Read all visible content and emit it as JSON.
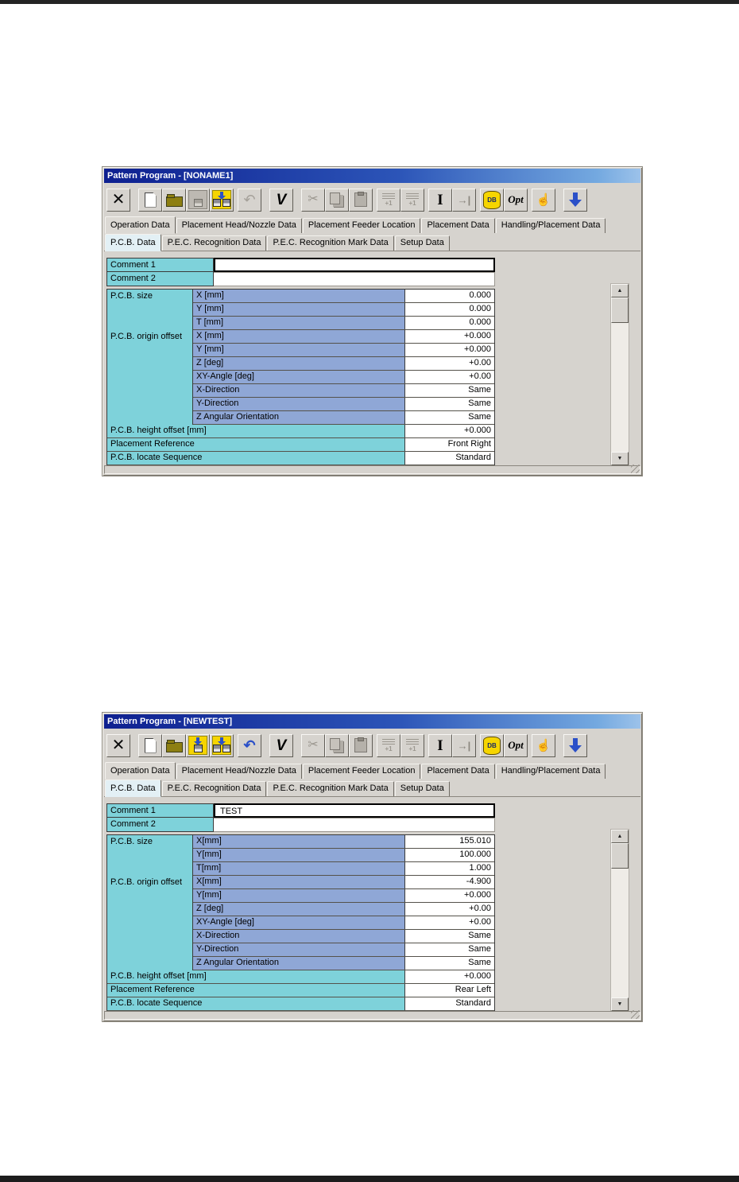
{
  "icons": {
    "close": "✕",
    "undo": "↶",
    "check": "V",
    "cut": "✂",
    "ibeam": "I",
    "goto": "→|",
    "hand": "☝",
    "scroll_up": "▲",
    "scroll_down": "▼"
  },
  "toolbar": {
    "opt": "Opt",
    "db": "DB",
    "plus_one": "+1"
  },
  "tabs_main": [
    "Operation Data",
    "Placement Head/Nozzle Data",
    "Placement Feeder Location",
    "Placement Data",
    "Handling/Placement Data"
  ],
  "tabs_sub": [
    "P.C.B. Data",
    "P.E.C. Recognition Data",
    "P.E.C. Recognition Mark Data",
    "Setup Data"
  ],
  "windows": [
    {
      "title": "Pattern Program - [NONAME1]",
      "comment1_label": "Comment 1",
      "comment1_value": "",
      "comment2_label": "Comment 2",
      "comment2_value": "",
      "size_group": "P.C.B. size",
      "size_rows": [
        {
          "label": "X [mm]",
          "value": "0.000"
        },
        {
          "label": "Y [mm]",
          "value": "0.000"
        },
        {
          "label": "T [mm]",
          "value": "0.000"
        }
      ],
      "offset_group": "P.C.B. origin offset",
      "offset_rows": [
        {
          "label": "X [mm]",
          "value": "+0.000"
        },
        {
          "label": "Y [mm]",
          "value": "+0.000"
        },
        {
          "label": "Z [deg]",
          "value": "+0.00"
        },
        {
          "label": "XY-Angle [deg]",
          "value": "+0.00"
        },
        {
          "label": "X-Direction",
          "value": "Same"
        },
        {
          "label": "Y-Direction",
          "value": "Same"
        },
        {
          "label": "Z Angular Orientation",
          "value": "Same"
        }
      ],
      "bottom_rows": [
        {
          "label": "P.C.B. height offset [mm]",
          "value": "+0.000"
        },
        {
          "label": "Placement Reference",
          "value": "Front Right"
        },
        {
          "label": "P.C.B. locate Sequence",
          "value": "Standard"
        }
      ]
    },
    {
      "title": "Pattern Program - [NEWTEST]",
      "comment1_label": "Comment 1",
      "comment1_value": "TEST",
      "comment2_label": "Comment 2",
      "comment2_value": "",
      "size_group": "P.C.B. size",
      "size_rows": [
        {
          "label": "X[mm]",
          "value": "155.010"
        },
        {
          "label": "Y[mm]",
          "value": "100.000"
        },
        {
          "label": "T[mm]",
          "value": "1.000"
        }
      ],
      "offset_group": "P.C.B. origin offset",
      "offset_rows": [
        {
          "label": "X[mm]",
          "value": "-4.900"
        },
        {
          "label": "Y[mm]",
          "value": "+0.000"
        },
        {
          "label": "Z [deg]",
          "value": "+0.00"
        },
        {
          "label": "XY-Angle [deg]",
          "value": "+0.00"
        },
        {
          "label": "X-Direction",
          "value": "Same"
        },
        {
          "label": "Y-Direction",
          "value": "Same"
        },
        {
          "label": "Z Angular Orientation",
          "value": "Same"
        }
      ],
      "bottom_rows": [
        {
          "label": "P.C.B. height offset [mm]",
          "value": "+0.000"
        },
        {
          "label": "Placement Reference",
          "value": "Rear Left"
        },
        {
          "label": "P.C.B. locate Sequence",
          "value": "Standard"
        }
      ]
    }
  ]
}
